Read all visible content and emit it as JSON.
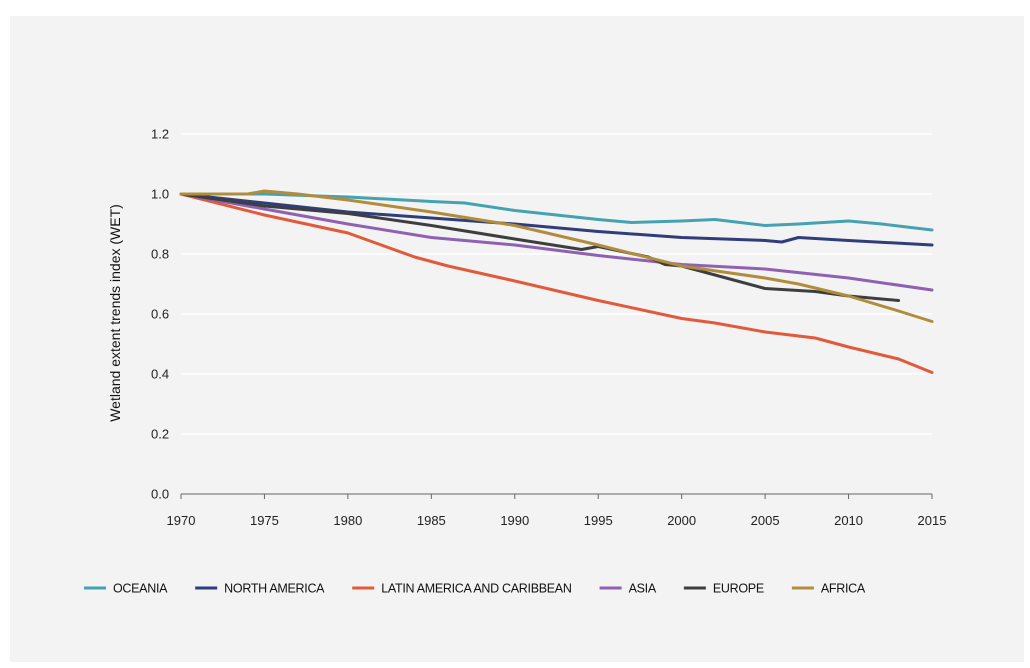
{
  "chart_data": {
    "type": "line",
    "title": "",
    "xlabel": "",
    "ylabel": "Wetland extent trends index (WET)",
    "xlim": [
      1970,
      2015
    ],
    "ylim": [
      0,
      1.2
    ],
    "x_ticks": [
      "1970",
      "1975",
      "1980",
      "1985",
      "1990",
      "1995",
      "2000",
      "2005",
      "2010",
      "2015"
    ],
    "y_ticks": [
      "0.0",
      "0.2",
      "0.4",
      "0.6",
      "0.8",
      "1.0",
      "1.2"
    ],
    "grid": "horizontal",
    "legend_position": "bottom",
    "series": [
      {
        "name": "OCEANIA",
        "color": "#45a2b0",
        "x": [
          1970,
          1975,
          1980,
          1985,
          1987,
          1990,
          1995,
          1997,
          2000,
          2002,
          2005,
          2007,
          2010,
          2012,
          2015
        ],
        "y": [
          1.0,
          1.0,
          0.99,
          0.975,
          0.97,
          0.945,
          0.915,
          0.905,
          0.91,
          0.915,
          0.895,
          0.9,
          0.91,
          0.9,
          0.88
        ]
      },
      {
        "name": "NORTH AMERICA",
        "color": "#2f3e7b",
        "x": [
          1970,
          1975,
          1980,
          1985,
          1990,
          1995,
          2000,
          2005,
          2006,
          2007,
          2010,
          2015
        ],
        "y": [
          1.0,
          0.97,
          0.94,
          0.92,
          0.9,
          0.875,
          0.855,
          0.845,
          0.84,
          0.855,
          0.845,
          0.83
        ]
      },
      {
        "name": "LATIN AMERICA AND CARIBBEAN",
        "color": "#e15a3c",
        "x": [
          1970,
          1975,
          1980,
          1982,
          1984,
          1986,
          1990,
          1995,
          2000,
          2002,
          2005,
          2008,
          2010,
          2013,
          2015
        ],
        "y": [
          1.0,
          0.93,
          0.87,
          0.83,
          0.79,
          0.76,
          0.71,
          0.645,
          0.585,
          0.57,
          0.54,
          0.52,
          0.49,
          0.45,
          0.405
        ]
      },
      {
        "name": "ASIA",
        "color": "#8e61b2",
        "x": [
          1970,
          1975,
          1980,
          1985,
          1990,
          1995,
          2000,
          2005,
          2010,
          2015
        ],
        "y": [
          1.0,
          0.95,
          0.9,
          0.855,
          0.83,
          0.795,
          0.765,
          0.75,
          0.72,
          0.68
        ]
      },
      {
        "name": "EUROPE",
        "color": "#3d3e40",
        "x": [
          1970,
          1975,
          1980,
          1985,
          1990,
          1994,
          1995,
          1998,
          1999,
          2000,
          2002,
          2005,
          2008,
          2010,
          2013
        ],
        "y": [
          1.0,
          0.96,
          0.935,
          0.895,
          0.85,
          0.815,
          0.825,
          0.79,
          0.765,
          0.76,
          0.73,
          0.685,
          0.675,
          0.66,
          0.645
        ]
      },
      {
        "name": "AFRICA",
        "color": "#b08d3d",
        "x": [
          1970,
          1974,
          1975,
          1977,
          1980,
          1985,
          1990,
          1995,
          2000,
          2005,
          2007,
          2010,
          2013,
          2015
        ],
        "y": [
          1.0,
          1.0,
          1.01,
          1.0,
          0.98,
          0.94,
          0.895,
          0.83,
          0.76,
          0.72,
          0.7,
          0.66,
          0.61,
          0.575
        ]
      }
    ]
  }
}
